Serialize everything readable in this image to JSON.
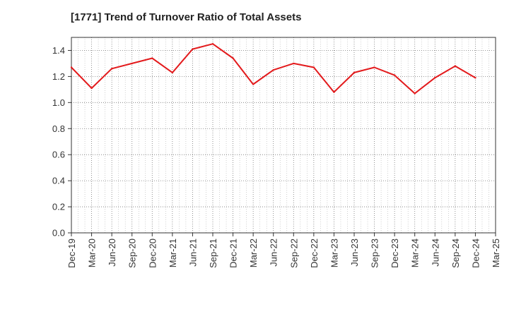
{
  "chart_data": {
    "type": "line",
    "title": "[1771]  Trend of Turnover Ratio of Total Assets",
    "xlabel": "",
    "ylabel": "",
    "x_tick_labels": [
      "Dec-19",
      "Mar-20",
      "Jun-20",
      "Sep-20",
      "Dec-20",
      "Mar-21",
      "Jun-21",
      "Sep-21",
      "Dec-21",
      "Mar-22",
      "Jun-22",
      "Sep-22",
      "Dec-22",
      "Mar-23",
      "Jun-23",
      "Sep-23",
      "Dec-23",
      "Mar-24",
      "Jun-24",
      "Sep-24",
      "Dec-24",
      "Mar-25"
    ],
    "y_tick_labels": [
      "0.0",
      "0.2",
      "0.4",
      "0.6",
      "0.8",
      "1.0",
      "1.2",
      "1.4"
    ],
    "ylim": [
      0,
      1.5
    ],
    "grid": true,
    "series": [
      {
        "color": "#e31a1c",
        "x": [
          "Dec-19",
          "Mar-20",
          "Jun-20",
          "Sep-20",
          "Dec-20",
          "Mar-21",
          "Jun-21",
          "Sep-21",
          "Dec-21",
          "Mar-22",
          "Jun-22",
          "Sep-22",
          "Dec-22",
          "Mar-23",
          "Jun-23",
          "Sep-23",
          "Dec-23",
          "Mar-24",
          "Jun-24",
          "Sep-24",
          "Dec-24"
        ],
        "values": [
          1.27,
          1.11,
          1.26,
          1.3,
          1.34,
          1.23,
          1.41,
          1.45,
          1.34,
          1.14,
          1.25,
          1.3,
          1.27,
          1.08,
          1.23,
          1.27,
          1.21,
          1.07,
          1.19,
          1.28,
          1.19
        ]
      }
    ]
  }
}
